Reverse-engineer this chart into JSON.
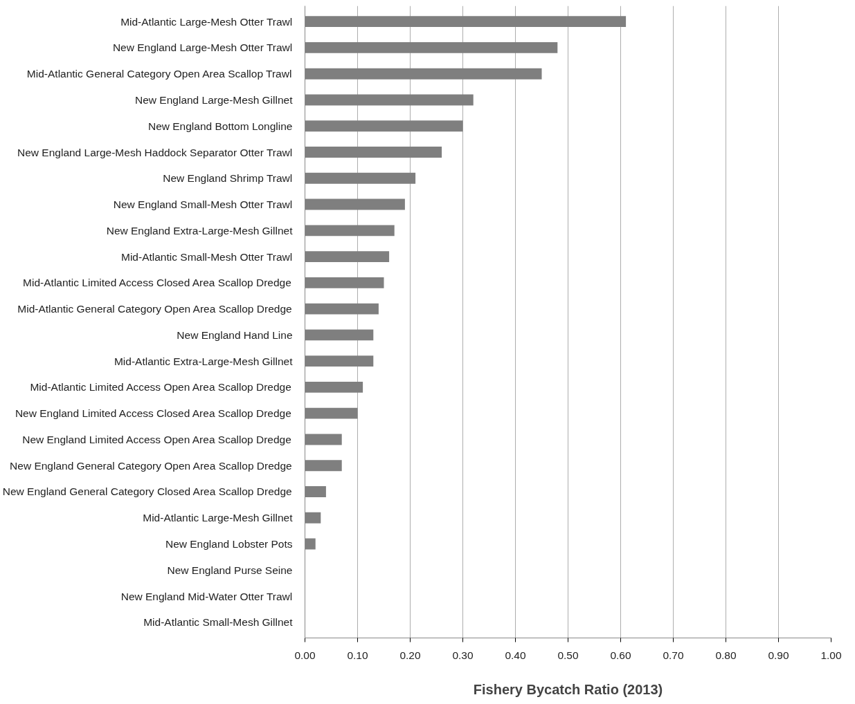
{
  "chart_data": {
    "type": "bar",
    "orientation": "horizontal",
    "xlabel": "Fishery Bycatch Ratio (2013)",
    "categories": [
      "Mid-Atlantic Large-Mesh Otter Trawl",
      "New England Large-Mesh Otter Trawl",
      "Mid-Atlantic General Category Open Area Scallop Trawl",
      "New England Large-Mesh Gillnet",
      "New England Bottom Longline",
      "New England Large-Mesh Haddock Separator Otter Trawl",
      "New England Shrimp Trawl",
      "New England Small-Mesh Otter Trawl",
      "New England Extra-Large-Mesh Gillnet",
      "Mid-Atlantic Small-Mesh Otter Trawl",
      "Mid-Atlantic Limited Access Closed Area Scallop Dredge",
      "Mid-Atlantic General Category Open Area Scallop Dredge",
      "New England Hand Line",
      "Mid-Atlantic Extra-Large-Mesh Gillnet",
      "Mid-Atlantic Limited Access Open Area Scallop Dredge",
      "New England Limited Access Closed Area Scallop Dredge",
      "New England Limited Access Open Area Scallop Dredge",
      "New England General Category Open Area Scallop Dredge",
      "New England General Category Closed Area Scallop Dredge",
      "Mid-Atlantic Large-Mesh Gillnet",
      "New England Lobster Pots",
      "New England Purse Seine",
      "New England Mid-Water Otter Trawl",
      "Mid-Atlantic Small-Mesh Gillnet"
    ],
    "values": [
      0.61,
      0.48,
      0.45,
      0.32,
      0.3,
      0.26,
      0.21,
      0.19,
      0.17,
      0.16,
      0.15,
      0.14,
      0.13,
      0.13,
      0.11,
      0.1,
      0.07,
      0.07,
      0.04,
      0.03,
      0.02,
      0,
      0,
      0
    ],
    "color": "#7f7f7f",
    "xlim": [
      0,
      1
    ],
    "xticks": [
      {
        "value": 0,
        "label": "0.00"
      },
      {
        "value": 0.1,
        "label": "0.10"
      },
      {
        "value": 0.2,
        "label": "0.20"
      },
      {
        "value": 0.3,
        "label": "0.30"
      },
      {
        "value": 0.4,
        "label": "0.40"
      },
      {
        "value": 0.5,
        "label": "0.50"
      },
      {
        "value": 0.6,
        "label": "0.60"
      },
      {
        "value": 0.7,
        "label": "0.70"
      },
      {
        "value": 0.8,
        "label": "0.80"
      },
      {
        "value": 0.9,
        "label": "0.90"
      },
      {
        "value": 1,
        "label": "1.00"
      }
    ],
    "grid": "x"
  }
}
